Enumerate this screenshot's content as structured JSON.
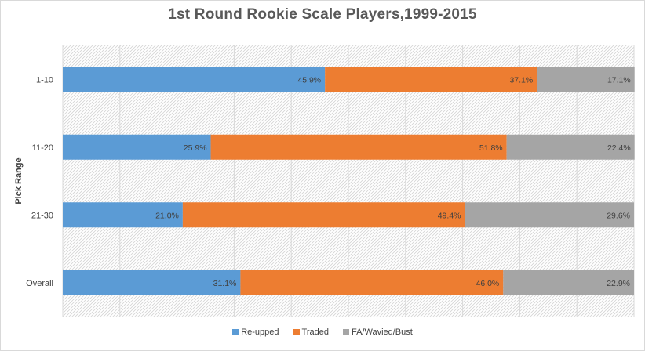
{
  "chart_data": {
    "type": "bar",
    "orientation": "horizontal",
    "stacked": true,
    "title": "1st Round Rookie Scale Players,1999-2015",
    "ylabel": "Pick Range",
    "xlabel": "",
    "categories": [
      "1-10",
      "11-20",
      "21-30",
      "Overall"
    ],
    "series": [
      {
        "name": "Re-upped",
        "values": [
          45.9,
          25.9,
          21.0,
          31.1
        ],
        "labels": [
          "45.9%",
          "25.9%",
          "21.0%",
          "31.1%"
        ],
        "color": "#5b9bd5"
      },
      {
        "name": "Traded",
        "values": [
          37.1,
          51.8,
          49.4,
          46.0
        ],
        "labels": [
          "37.1%",
          "51.8%",
          "49.4%",
          "46.0%"
        ],
        "color": "#ed7d31"
      },
      {
        "name": "FA/Wavied/Bust",
        "values": [
          17.1,
          22.4,
          29.6,
          22.9
        ],
        "labels": [
          "17.1%",
          "22.4%",
          "29.6%",
          "22.9%"
        ],
        "color": "#a5a5a5"
      }
    ],
    "xlim": [
      0,
      100
    ],
    "grid": true,
    "legend_position": "bottom"
  }
}
